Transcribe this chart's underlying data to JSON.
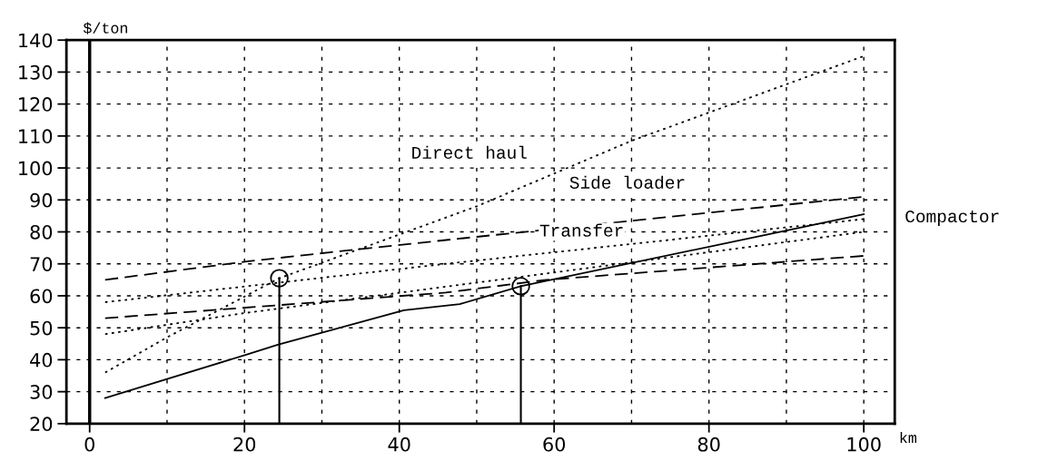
{
  "chart_data": {
    "type": "line",
    "xlabel": "km",
    "ylabel": "$/ton",
    "xlim": [
      -3,
      104
    ],
    "ylim": [
      20,
      140
    ],
    "xticks": [
      0,
      20,
      40,
      60,
      80,
      100
    ],
    "yticks": [
      20,
      30,
      40,
      50,
      60,
      70,
      80,
      90,
      100,
      110,
      120,
      130,
      140
    ],
    "grid": true,
    "series": [
      {
        "color": "#000000",
        "line_style": "dotted",
        "x": [
          2,
          10,
          24.5,
          50,
          70,
          100
        ],
        "values": [
          36,
          47,
          65.5,
          88,
          108.5,
          135
        ]
      },
      {
        "color": "#000000",
        "line_style": "solid",
        "x": [
          2,
          20.5,
          24.3,
          40.6,
          47.8,
          55.7,
          100
        ],
        "values": [
          28,
          41.8,
          44.7,
          55.5,
          57.4,
          63,
          85.5
        ]
      },
      {
        "color": "#000000",
        "line_style": "dashed",
        "x": [
          2,
          20.5,
          31,
          47.8,
          100
        ],
        "values": [
          65,
          70.8,
          73.6,
          77.9,
          91
        ]
      },
      {
        "color": "#000000",
        "line_style": "dotted",
        "x": [
          2,
          46,
          100
        ],
        "values": [
          58,
          70,
          84
        ]
      },
      {
        "color": "#000000",
        "line_style": "dotted",
        "x": [
          2,
          20,
          100
        ],
        "values": [
          48,
          54.6,
          80
        ]
      },
      {
        "color": "#000000",
        "line_style": "dashed",
        "x": [
          2,
          46,
          59,
          100
        ],
        "values": [
          53,
          61,
          65,
          72.5
        ]
      },
      {
        "type": "lollipop",
        "color": "#000000",
        "marker": "circle",
        "x": [
          24.5,
          55.7
        ],
        "values": [
          65.5,
          63
        ]
      }
    ],
    "ref_lines": [
      {
        "axis": "x",
        "value": 0,
        "color": "#000000",
        "line_style": "solid"
      }
    ],
    "annotations": [
      "Direct haul",
      "Side loader",
      "Transfer",
      "Compactor"
    ]
  }
}
